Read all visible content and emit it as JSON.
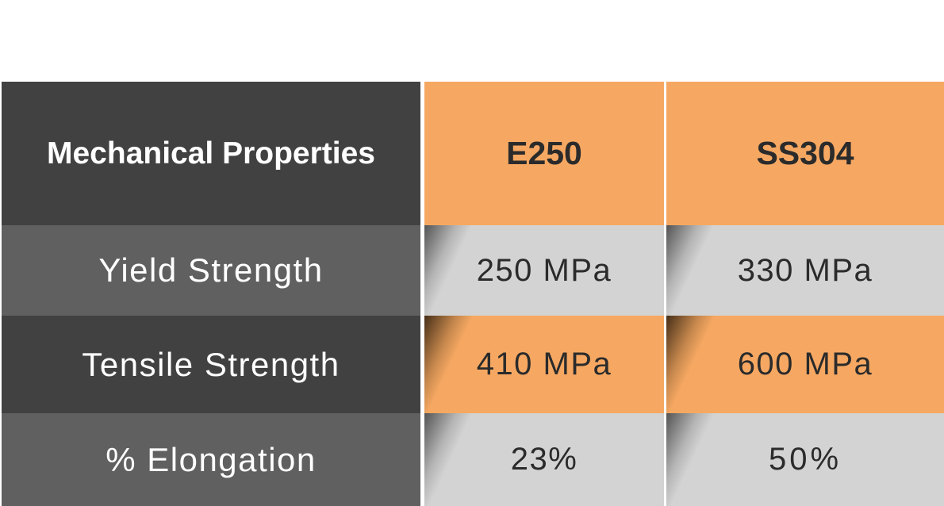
{
  "table": {
    "header": {
      "property_label": "Mechanical Properties",
      "materials": [
        "E250",
        "SS304"
      ]
    },
    "rows": [
      {
        "property": "Yield Strength",
        "values": [
          "250 MPa",
          "330 MPa"
        ]
      },
      {
        "property": "Tensile Strength",
        "values": [
          "410 MPa",
          "600 MPa"
        ]
      },
      {
        "property": "% Elongation",
        "values": [
          "23%",
          "50%"
        ]
      }
    ]
  },
  "colors": {
    "header_dark": "#414141",
    "label_gray": "#5f605f",
    "label_dark": "#414141",
    "accent_orange": "#f6a862",
    "light_gray": "#d3d3d3",
    "text_dark": "#2b2b2b"
  }
}
